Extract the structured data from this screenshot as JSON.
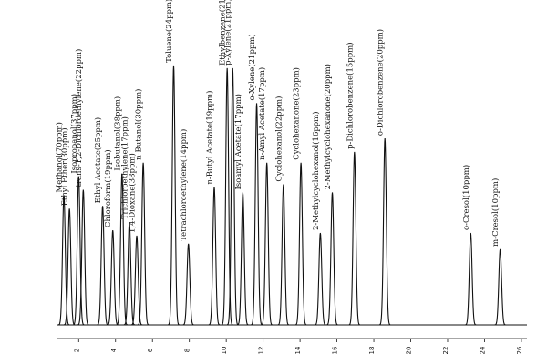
{
  "chart_data": {
    "type": "line",
    "title": "",
    "xlabel": "",
    "ylabel": "",
    "x_range": [
      0.8,
      26.3
    ],
    "y_range": [
      0,
      100
    ],
    "grid": false,
    "x_ticks": [
      "2",
      "4",
      "6",
      "8",
      "10",
      "12",
      "14",
      "16",
      "18",
      "20",
      "22",
      "24",
      "26"
    ],
    "peaks": [
      {
        "label": "Methanol(70ppm)",
        "x": 1.2,
        "height": 48
      },
      {
        "label": "Ethyl Ether(30ppm)",
        "x": 1.5,
        "height": 43
      },
      {
        "label": "Isopropanol(37ppm)",
        "x": 2.0,
        "height": 55
      },
      {
        "label": "trans-1,2-Dichloroethylene(22ppm)",
        "x": 2.25,
        "height": 50
      },
      {
        "label": "Ethyl Acetate(25ppm)",
        "x": 3.3,
        "height": 44
      },
      {
        "label": "Chloroform(19ppm)",
        "x": 3.85,
        "height": 35
      },
      {
        "label": "Isobutanol(38ppm)",
        "x": 4.35,
        "height": 56
      },
      {
        "label": "Trichloroethylene(17ppm)",
        "x": 4.75,
        "height": 38
      },
      {
        "label": "1,4-Dioxane(38ppm)",
        "x": 5.15,
        "height": 33
      },
      {
        "label": "n-Butanol(30ppm)",
        "x": 5.5,
        "height": 60
      },
      {
        "label": "Toluene(24ppm)",
        "x": 7.15,
        "height": 96
      },
      {
        "label": "Tetrachloroethylene(14ppm)",
        "x": 7.95,
        "height": 30
      },
      {
        "label": "n-Butyl Acetate(19ppm)",
        "x": 9.35,
        "height": 51
      },
      {
        "label": "Ethylbenzene(21ppm)",
        "x": 10.05,
        "height": 95
      },
      {
        "label": "p-Xylene(21ppm)",
        "x": 10.35,
        "height": 95
      },
      {
        "label": "Isoamyl Acetate(17ppm)",
        "x": 10.9,
        "height": 49
      },
      {
        "label": "o-Xylene(21ppm)",
        "x": 11.65,
        "height": 82
      },
      {
        "label": "n-Amyl Acetate(17ppm)",
        "x": 12.2,
        "height": 60
      },
      {
        "label": "Cyclohexanol(22ppm)",
        "x": 13.1,
        "height": 52
      },
      {
        "label": "Cyclohexanone(23ppm)",
        "x": 14.05,
        "height": 60
      },
      {
        "label": "2-Methylcyclohexanol(16ppm)",
        "x": 15.1,
        "height": 34
      },
      {
        "label": "2-Methylcyclohexanone(20ppm)",
        "x": 15.75,
        "height": 49
      },
      {
        "label": "p-Dichlorobenzene(15ppm)",
        "x": 16.95,
        "height": 64
      },
      {
        "label": "o-Dichlorobenzene(20ppm)",
        "x": 18.6,
        "height": 69
      },
      {
        "label": "o-Cresol(10ppm)",
        "x": 23.25,
        "height": 34
      },
      {
        "label": "m-Cresol(10ppm)",
        "x": 24.85,
        "height": 28
      }
    ]
  }
}
